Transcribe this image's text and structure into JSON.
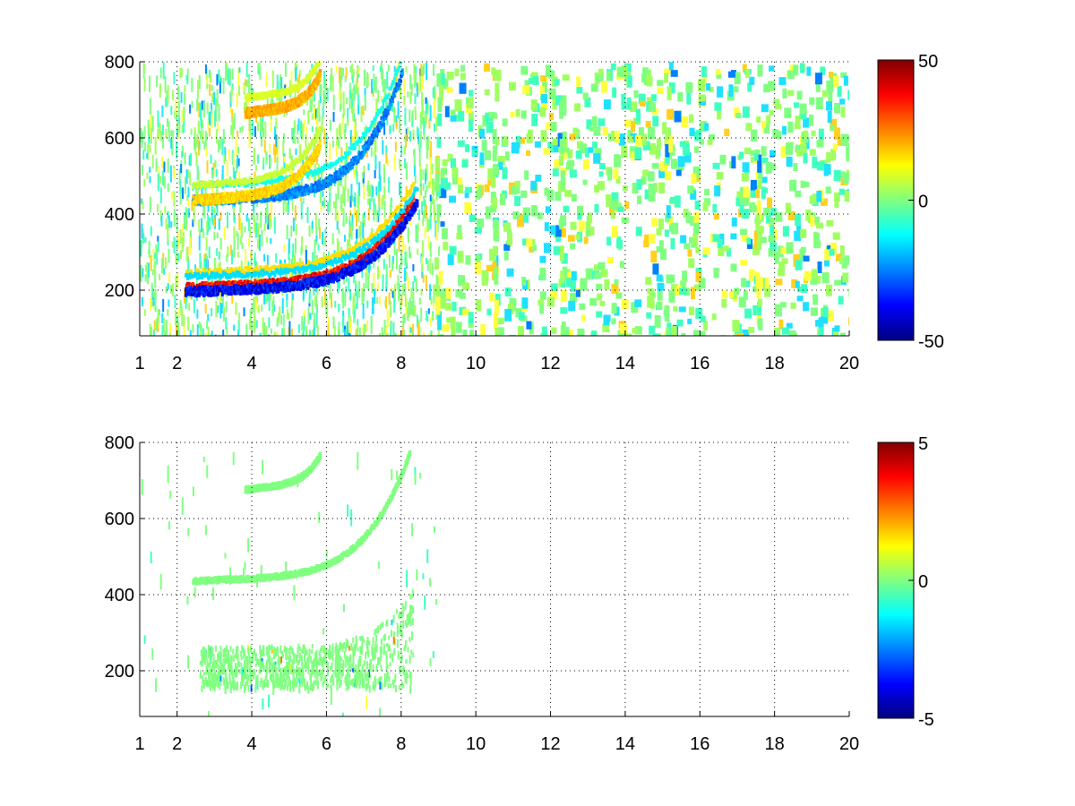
{
  "chart_data": [
    {
      "type": "heatmap",
      "title": "",
      "xlabel": "",
      "ylabel": "",
      "x_ticks": [
        "1",
        "2",
        "4",
        "6",
        "8",
        "10",
        "12",
        "14",
        "16",
        "18",
        "20"
      ],
      "y_ticks": [
        "200",
        "400",
        "600",
        "800"
      ],
      "xlim": [
        1,
        20
      ],
      "ylim": [
        80,
        800
      ],
      "grid": true,
      "colormap": "jet",
      "colorbar": {
        "min": -50,
        "max": 50,
        "ticks": [
          "-50",
          "0",
          "50"
        ]
      },
      "features": [
        {
          "kind": "arc",
          "from": [
            2.2,
            210
          ],
          "to": [
            8.3,
            420
          ],
          "value": 45
        },
        {
          "kind": "arc",
          "from": [
            2.2,
            200
          ],
          "to": [
            8.4,
            410
          ],
          "value": -45
        },
        {
          "kind": "arc",
          "from": [
            2.4,
            440
          ],
          "to": [
            8.0,
            750
          ],
          "value": -30
        },
        {
          "kind": "arc",
          "from": [
            2.4,
            440
          ],
          "to": [
            5.8,
            560
          ],
          "value": 20
        },
        {
          "kind": "arc",
          "from": [
            3.8,
            670
          ],
          "to": [
            5.8,
            745
          ],
          "value": 25
        }
      ],
      "noise_x_range": [
        1,
        20
      ]
    },
    {
      "type": "heatmap",
      "title": "",
      "xlabel": "",
      "ylabel": "",
      "x_ticks": [
        "1",
        "2",
        "4",
        "6",
        "8",
        "10",
        "12",
        "14",
        "16",
        "18",
        "20"
      ],
      "y_ticks": [
        "200",
        "400",
        "600",
        "800"
      ],
      "xlim": [
        1,
        20
      ],
      "ylim": [
        80,
        800
      ],
      "grid": true,
      "colormap": "jet",
      "colorbar": {
        "min": -5,
        "max": 5,
        "ticks": [
          "-5",
          "0",
          "5"
        ]
      },
      "features": [
        {
          "kind": "region",
          "x": [
            2.6,
            8.3
          ],
          "y": [
            160,
            420
          ],
          "value": 0
        },
        {
          "kind": "arc",
          "from": [
            2.4,
            440
          ],
          "to": [
            8.2,
            750
          ],
          "value": 0
        },
        {
          "kind": "arc",
          "from": [
            3.8,
            680
          ],
          "to": [
            5.8,
            745
          ],
          "value": 0
        }
      ],
      "noise_x_range": [
        1,
        9
      ]
    }
  ]
}
